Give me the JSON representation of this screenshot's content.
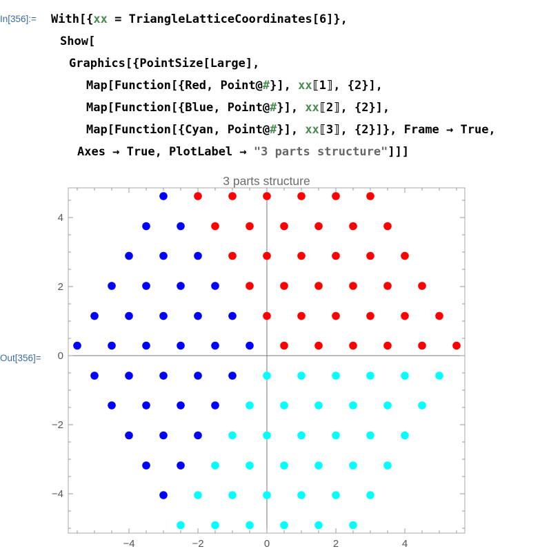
{
  "cell": {
    "in_label": "In[356]:=",
    "out_label": "Out[356]=",
    "code_lines": [
      {
        "parts": [
          {
            "t": "With[{",
            "c": ""
          },
          {
            "t": "xx",
            "c": "var"
          },
          {
            "t": " = TriangleLatticeCoordinates[6]},",
            "c": ""
          }
        ]
      },
      {
        "parts": [
          {
            "t": "Show[",
            "c": ""
          }
        ]
      },
      {
        "parts": [
          {
            "t": "Graphics[{PointSize[Large],",
            "c": ""
          }
        ]
      },
      {
        "parts": [
          {
            "t": "Map[Function[{Red, Point@",
            "c": ""
          },
          {
            "t": "#",
            "c": "slot"
          },
          {
            "t": "}], ",
            "c": ""
          },
          {
            "t": "xx",
            "c": "var"
          },
          {
            "t": "⟦1⟧, {2}],",
            "c": ""
          }
        ]
      },
      {
        "parts": [
          {
            "t": "Map[Function[{Blue, Point@",
            "c": ""
          },
          {
            "t": "#",
            "c": "slot"
          },
          {
            "t": "}], ",
            "c": ""
          },
          {
            "t": "xx",
            "c": "var"
          },
          {
            "t": "⟦2⟧, {2}],",
            "c": ""
          }
        ]
      },
      {
        "parts": [
          {
            "t": "Map[Function[{Cyan, Point@",
            "c": ""
          },
          {
            "t": "#",
            "c": "slot"
          },
          {
            "t": "}], ",
            "c": ""
          },
          {
            "t": "xx",
            "c": "var"
          },
          {
            "t": "⟦3⟧, {2}]}, Frame → True,",
            "c": ""
          }
        ]
      },
      {
        "parts": [
          {
            "t": "Axes → True, PlotLabel → ",
            "c": ""
          },
          {
            "t": "\"3 parts structure\"",
            "c": "str"
          },
          {
            "t": "]]]",
            "c": ""
          }
        ]
      }
    ]
  },
  "chart_data": {
    "type": "scatter",
    "title": "3 parts structure",
    "frame": true,
    "axes": true,
    "xlim": [
      -5.5,
      5.75
    ],
    "ylim": [
      -5.1,
      4.8
    ],
    "xticks": [
      -4,
      -2,
      0,
      2,
      4
    ],
    "yticks": [
      -4,
      -2,
      0,
      2,
      4
    ],
    "xtick_labels": [
      "−4",
      "−2",
      "0",
      "2",
      "4"
    ],
    "ytick_labels": [
      "−4",
      "−2",
      "0",
      "2",
      "4"
    ],
    "colors": {
      "red": "#ff0000",
      "blue": "#0000ff",
      "cyan": "#00ffff"
    },
    "series": [
      {
        "color": "red",
        "points": [
          [
            0.5,
            0.29
          ],
          [
            1.5,
            0.29
          ],
          [
            2.5,
            0.29
          ],
          [
            3.5,
            0.29
          ],
          [
            4.5,
            0.29
          ],
          [
            5.5,
            0.29
          ],
          [
            0,
            1.15
          ],
          [
            1,
            1.15
          ],
          [
            2,
            1.15
          ],
          [
            3,
            1.15
          ],
          [
            4,
            1.15
          ],
          [
            5,
            1.15
          ],
          [
            -0.5,
            2.02
          ],
          [
            0.5,
            2.02
          ],
          [
            1.5,
            2.02
          ],
          [
            2.5,
            2.02
          ],
          [
            3.5,
            2.02
          ],
          [
            4.5,
            2.02
          ],
          [
            -1,
            2.89
          ],
          [
            0,
            2.89
          ],
          [
            1,
            2.89
          ],
          [
            2,
            2.89
          ],
          [
            3,
            2.89
          ],
          [
            4,
            2.89
          ],
          [
            -1.5,
            3.75
          ],
          [
            -0.5,
            3.75
          ],
          [
            0.5,
            3.75
          ],
          [
            1.5,
            3.75
          ],
          [
            2.5,
            3.75
          ],
          [
            3.5,
            3.75
          ],
          [
            -2,
            4.62
          ],
          [
            -1,
            4.62
          ],
          [
            0,
            4.62
          ],
          [
            1,
            4.62
          ],
          [
            2,
            4.62
          ],
          [
            3,
            4.62
          ]
        ]
      },
      {
        "color": "blue",
        "points": [
          [
            -5.5,
            0.29
          ],
          [
            -4.5,
            0.29
          ],
          [
            -3.5,
            0.29
          ],
          [
            -2.5,
            0.29
          ],
          [
            -1.5,
            0.29
          ],
          [
            -0.5,
            0.29
          ],
          [
            -5,
            1.15
          ],
          [
            -4,
            1.15
          ],
          [
            -3,
            1.15
          ],
          [
            -2,
            1.15
          ],
          [
            -1,
            1.15
          ],
          [
            -4.5,
            2.02
          ],
          [
            -3.5,
            2.02
          ],
          [
            -2.5,
            2.02
          ],
          [
            -1.5,
            2.02
          ],
          [
            -4,
            2.89
          ],
          [
            -3,
            2.89
          ],
          [
            -2,
            2.89
          ],
          [
            -3.5,
            3.75
          ],
          [
            -2.5,
            3.75
          ],
          [
            -3,
            4.62
          ],
          [
            -5,
            -0.58
          ],
          [
            -4,
            -0.58
          ],
          [
            -3,
            -0.58
          ],
          [
            -2,
            -0.58
          ],
          [
            -1,
            -0.58
          ],
          [
            -4.5,
            -1.44
          ],
          [
            -3.5,
            -1.44
          ],
          [
            -2.5,
            -1.44
          ],
          [
            -1.5,
            -1.44
          ],
          [
            -4,
            -2.31
          ],
          [
            -3,
            -2.31
          ],
          [
            -2,
            -2.31
          ],
          [
            -3.5,
            -3.18
          ],
          [
            -2.5,
            -3.18
          ],
          [
            -3,
            -4.04
          ]
        ]
      },
      {
        "color": "cyan",
        "points": [
          [
            0,
            -0.58
          ],
          [
            1,
            -0.58
          ],
          [
            2,
            -0.58
          ],
          [
            3,
            -0.58
          ],
          [
            4,
            -0.58
          ],
          [
            5,
            -0.58
          ],
          [
            -0.5,
            -1.44
          ],
          [
            0.5,
            -1.44
          ],
          [
            1.5,
            -1.44
          ],
          [
            2.5,
            -1.44
          ],
          [
            3.5,
            -1.44
          ],
          [
            4.5,
            -1.44
          ],
          [
            -1,
            -2.31
          ],
          [
            0,
            -2.31
          ],
          [
            1,
            -2.31
          ],
          [
            2,
            -2.31
          ],
          [
            3,
            -2.31
          ],
          [
            4,
            -2.31
          ],
          [
            -1.5,
            -3.18
          ],
          [
            -0.5,
            -3.18
          ],
          [
            0.5,
            -3.18
          ],
          [
            1.5,
            -3.18
          ],
          [
            2.5,
            -3.18
          ],
          [
            3.5,
            -3.18
          ],
          [
            -2,
            -4.04
          ],
          [
            -1,
            -4.04
          ],
          [
            0,
            -4.04
          ],
          [
            1,
            -4.04
          ],
          [
            2,
            -4.04
          ],
          [
            3,
            -4.04
          ],
          [
            -2.5,
            -4.91
          ],
          [
            -1.5,
            -4.91
          ],
          [
            -0.5,
            -4.91
          ],
          [
            0.5,
            -4.91
          ],
          [
            1.5,
            -4.91
          ],
          [
            2.5,
            -4.91
          ]
        ]
      }
    ]
  }
}
